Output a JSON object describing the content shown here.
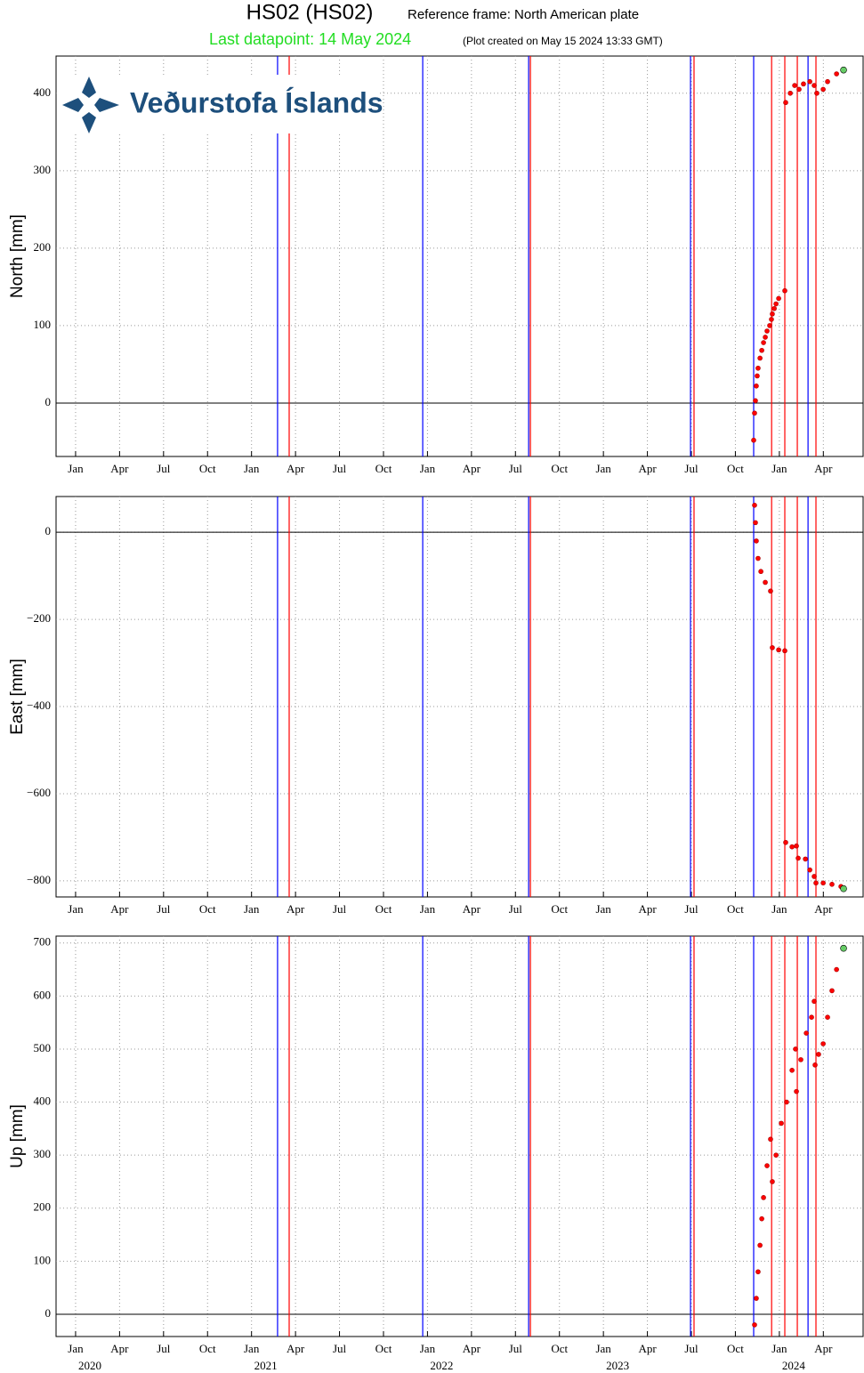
{
  "header": {
    "title": "HS02 (HS02)",
    "reference": "Reference frame: North American plate",
    "last_datapoint": "Last datapoint: 14 May 2024",
    "created": "(Plot created on May 15 2024 13:33 GMT)",
    "logo": "Veðurstofa Íslands"
  },
  "events": [
    {
      "x": 2021.148,
      "color": "#0000ff"
    },
    {
      "x": 2021.214,
      "color": "#ff0000"
    },
    {
      "x": 2021.973,
      "color": "#0000ff"
    },
    {
      "x": 2022.575,
      "color": "#0000ff"
    },
    {
      "x": 2022.585,
      "color": "#ff0000"
    },
    {
      "x": 2023.495,
      "color": "#0000ff"
    },
    {
      "x": 2023.515,
      "color": "#ff0000"
    },
    {
      "x": 2023.854,
      "color": "#0000ff"
    },
    {
      "x": 2023.956,
      "color": "#ff0000"
    },
    {
      "x": 2024.031,
      "color": "#ff0000"
    },
    {
      "x": 2024.102,
      "color": "#ff0000"
    },
    {
      "x": 2024.163,
      "color": "#0000ff"
    },
    {
      "x": 2024.208,
      "color": "#ff0000"
    }
  ],
  "chart_data": [
    {
      "type": "scatter",
      "ylabel": "North [mm]",
      "color": "#ff0000",
      "last_point_color": "#66cc66",
      "grid": true,
      "xlim": [
        2019.889,
        2024.476
      ],
      "ylim": [
        -69,
        448
      ],
      "yticks": [
        0,
        100,
        200,
        300,
        400
      ],
      "xticks": [
        {
          "value": 2020,
          "label": "Jan"
        },
        {
          "value": 2020.25,
          "label": "Apr"
        },
        {
          "value": 2020.5,
          "label": "Jul"
        },
        {
          "value": 2020.75,
          "label": "Oct"
        },
        {
          "value": 2021,
          "label": "Jan"
        },
        {
          "value": 2021.25,
          "label": "Apr"
        },
        {
          "value": 2021.5,
          "label": "Jul"
        },
        {
          "value": 2021.75,
          "label": "Oct"
        },
        {
          "value": 2022,
          "label": "Jan"
        },
        {
          "value": 2022.25,
          "label": "Apr"
        },
        {
          "value": 2022.5,
          "label": "Jul"
        },
        {
          "value": 2022.75,
          "label": "Oct"
        },
        {
          "value": 2023,
          "label": "Jan"
        },
        {
          "value": 2023.25,
          "label": "Apr"
        },
        {
          "value": 2023.5,
          "label": "Jul"
        },
        {
          "value": 2023.75,
          "label": "Oct"
        },
        {
          "value": 2024,
          "label": "Jan"
        },
        {
          "value": 2024.25,
          "label": "Apr"
        }
      ],
      "x": [
        2023.854,
        2023.859,
        2023.864,
        2023.869,
        2023.874,
        2023.879,
        2023.89,
        2023.9,
        2023.91,
        2023.92,
        2023.93,
        2023.945,
        2023.955,
        2023.96,
        2023.971,
        2023.981,
        2023.996,
        2024.031,
        2024.036,
        2024.062,
        2024.087,
        2024.112,
        2024.137,
        2024.173,
        2024.198,
        2024.213,
        2024.249,
        2024.274,
        2024.325,
        2024.365
      ],
      "values": [
        -48,
        -13,
        3,
        22,
        35,
        45,
        58,
        68,
        78,
        85,
        93,
        100,
        108,
        115,
        122,
        128,
        135,
        145,
        388,
        400,
        410,
        405,
        412,
        415,
        410,
        400,
        405,
        415,
        425,
        430
      ]
    },
    {
      "type": "scatter",
      "ylabel": "East [mm]",
      "color": "#ff0000",
      "last_point_color": "#66cc66",
      "grid": true,
      "xlim": [
        2019.889,
        2024.476
      ],
      "ylim": [
        -837,
        82
      ],
      "yticks": [
        {
          "value": -800,
          "label": "−800"
        },
        {
          "value": -600,
          "label": "−600"
        },
        {
          "value": -400,
          "label": "−400"
        },
        {
          "value": -200,
          "label": "−200"
        },
        0
      ],
      "xticks": [
        {
          "value": 2020,
          "label": "Jan"
        },
        {
          "value": 2020.25,
          "label": "Apr"
        },
        {
          "value": 2020.5,
          "label": "Jul"
        },
        {
          "value": 2020.75,
          "label": "Oct"
        },
        {
          "value": 2021,
          "label": "Jan"
        },
        {
          "value": 2021.25,
          "label": "Apr"
        },
        {
          "value": 2021.5,
          "label": "Jul"
        },
        {
          "value": 2021.75,
          "label": "Oct"
        },
        {
          "value": 2022,
          "label": "Jan"
        },
        {
          "value": 2022.25,
          "label": "Apr"
        },
        {
          "value": 2022.5,
          "label": "Jul"
        },
        {
          "value": 2022.75,
          "label": "Oct"
        },
        {
          "value": 2023,
          "label": "Jan"
        },
        {
          "value": 2023.25,
          "label": "Apr"
        },
        {
          "value": 2023.5,
          "label": "Jul"
        },
        {
          "value": 2023.75,
          "label": "Oct"
        },
        {
          "value": 2024,
          "label": "Jan"
        },
        {
          "value": 2024.25,
          "label": "Apr"
        }
      ],
      "x": [
        2023.859,
        2023.864,
        2023.869,
        2023.879,
        2023.895,
        2023.92,
        2023.95,
        2023.96,
        2023.996,
        2024.031,
        2024.036,
        2024.072,
        2024.097,
        2024.107,
        2024.148,
        2024.173,
        2024.198,
        2024.208,
        2024.249,
        2024.299,
        2024.35,
        2024.365
      ],
      "values": [
        62,
        22,
        -20,
        -60,
        -90,
        -115,
        -135,
        -265,
        -270,
        -272,
        -712,
        -722,
        -720,
        -748,
        -750,
        -775,
        -790,
        -805,
        -805,
        -808,
        -813,
        -818
      ]
    },
    {
      "type": "scatter",
      "ylabel": "Up [mm]",
      "color": "#ff0000",
      "last_point_color": "#66cc66",
      "grid": true,
      "xlim": [
        2019.889,
        2024.476
      ],
      "ylim": [
        -42,
        713
      ],
      "yticks": [
        0,
        100,
        200,
        300,
        400,
        500,
        600,
        700
      ],
      "xticks": [
        {
          "value": 2020,
          "label": "Jan"
        },
        {
          "value": 2020.25,
          "label": "Apr"
        },
        {
          "value": 2020.5,
          "label": "Jul"
        },
        {
          "value": 2020.75,
          "label": "Oct"
        },
        {
          "value": 2021,
          "label": "Jan"
        },
        {
          "value": 2021.25,
          "label": "Apr"
        },
        {
          "value": 2021.5,
          "label": "Jul"
        },
        {
          "value": 2021.75,
          "label": "Oct"
        },
        {
          "value": 2022,
          "label": "Jan"
        },
        {
          "value": 2022.25,
          "label": "Apr"
        },
        {
          "value": 2022.5,
          "label": "Jul"
        },
        {
          "value": 2022.75,
          "label": "Oct"
        },
        {
          "value": 2023,
          "label": "Jan"
        },
        {
          "value": 2023.25,
          "label": "Apr"
        },
        {
          "value": 2023.5,
          "label": "Jul"
        },
        {
          "value": 2023.75,
          "label": "Oct"
        },
        {
          "value": 2024,
          "label": "Jan"
        },
        {
          "value": 2024.25,
          "label": "Apr"
        }
      ],
      "year_ticks": [
        2020,
        2021,
        2022,
        2023,
        2024
      ],
      "x": [
        2023.859,
        2023.869,
        2023.879,
        2023.89,
        2023.9,
        2023.91,
        2023.93,
        2023.95,
        2023.96,
        2023.981,
        2024.011,
        2024.041,
        2024.072,
        2024.092,
        2024.097,
        2024.122,
        2024.153,
        2024.183,
        2024.198,
        2024.203,
        2024.223,
        2024.249,
        2024.274,
        2024.299,
        2024.325,
        2024.365
      ],
      "values": [
        -20,
        30,
        80,
        130,
        180,
        220,
        280,
        330,
        250,
        300,
        360,
        400,
        460,
        500,
        420,
        480,
        530,
        560,
        590,
        470,
        490,
        510,
        560,
        610,
        650,
        690
      ]
    }
  ]
}
